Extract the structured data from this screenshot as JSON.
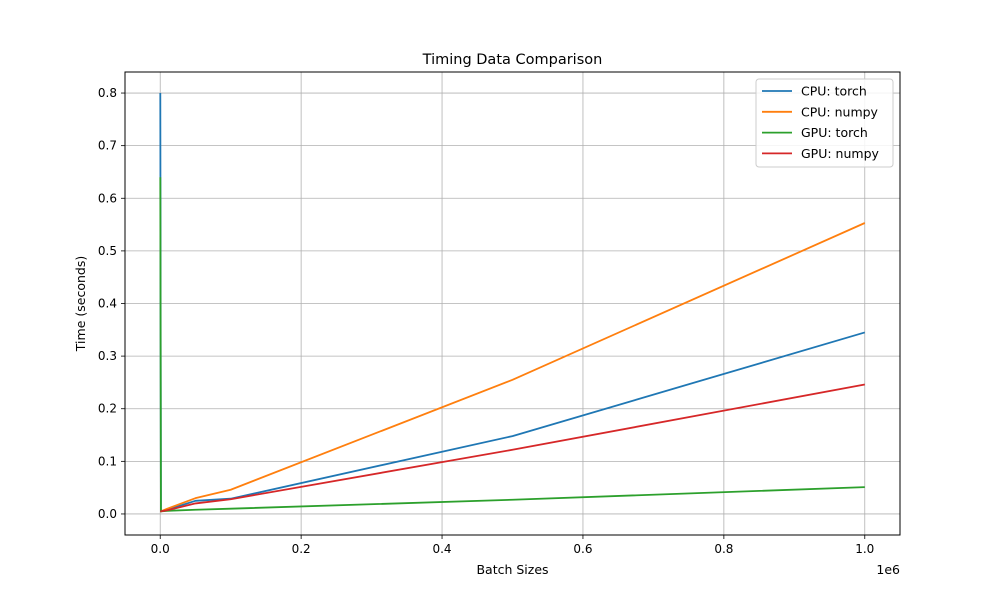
{
  "chart_data": {
    "type": "line",
    "title": "Timing Data Comparison",
    "xlabel": "Batch Sizes",
    "ylabel": "Time (seconds)",
    "x_offset_text": "1e6",
    "xlim": [
      -0.05,
      1.05
    ],
    "ylim": [
      -0.04,
      0.84
    ],
    "x_ticks": [
      0.0,
      0.2,
      0.4,
      0.6,
      0.8,
      1.0
    ],
    "x_tick_labels": [
      "0.0",
      "0.2",
      "0.4",
      "0.6",
      "0.8",
      "1.0"
    ],
    "y_ticks": [
      0.0,
      0.1,
      0.2,
      0.3,
      0.4,
      0.5,
      0.6,
      0.7,
      0.8
    ],
    "y_tick_labels": [
      "0.0",
      "0.1",
      "0.2",
      "0.3",
      "0.4",
      "0.5",
      "0.6",
      "0.7",
      "0.8"
    ],
    "grid": true,
    "legend_position": "upper right",
    "x": [
      0.0001,
      0.001,
      0.01,
      0.05,
      0.1,
      0.5,
      1.0
    ],
    "series": [
      {
        "name": "CPU: torch",
        "color": "#1f77b4",
        "values": [
          0.8,
          0.005,
          0.008,
          0.025,
          0.029,
          0.148,
          0.345
        ]
      },
      {
        "name": "CPU: numpy",
        "color": "#ff7f0e",
        "values": [
          0.005,
          0.005,
          0.01,
          0.03,
          0.046,
          0.255,
          0.553
        ]
      },
      {
        "name": "GPU: torch",
        "color": "#2ca02c",
        "values": [
          0.64,
          0.005,
          0.006,
          0.008,
          0.01,
          0.027,
          0.051
        ]
      },
      {
        "name": "GPU: numpy",
        "color": "#d62728",
        "values": [
          0.005,
          0.005,
          0.007,
          0.02,
          0.028,
          0.122,
          0.246
        ]
      }
    ]
  }
}
